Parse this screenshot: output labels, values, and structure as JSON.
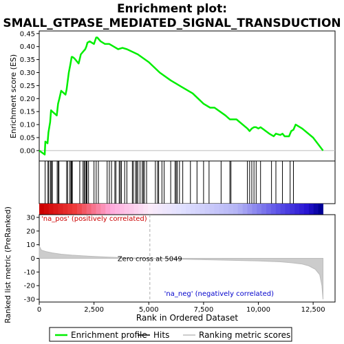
{
  "chart_data": {
    "type": "line",
    "title_line1": "Enrichment plot:",
    "title_line2": "SMALL_GTPASE_MEDIATED_SIGNAL_TRANSDUCTION",
    "xlabel": "Rank in Ordered Dataset",
    "top_ylabel": "Enrichment score (ES)",
    "bottom_ylabel_line1": "Ranked list metric (PreRanked)",
    "x_range": [
      0,
      13500
    ],
    "x_ticks": [
      0,
      2500,
      5000,
      7500,
      10000,
      12500
    ],
    "x_tick_labels": [
      "0",
      "2,500",
      "5,000",
      "7,500",
      "10,000",
      "12,500"
    ],
    "es_range": [
      -0.04,
      0.46
    ],
    "es_ticks": [
      0.0,
      0.05,
      0.1,
      0.15,
      0.2,
      0.25,
      0.3,
      0.35,
      0.4,
      0.45
    ],
    "es_tick_labels": [
      "0.00",
      "0.05",
      "0.10",
      "0.15",
      "0.20",
      "0.25",
      "0.30",
      "0.35",
      "0.40",
      "0.45"
    ],
    "metric_range": [
      -32,
      32
    ],
    "metric_ticks": [
      30,
      20,
      10,
      0,
      -10,
      -20,
      -30
    ],
    "metric_tick_labels": [
      "30",
      "20",
      "10",
      "0",
      "-10",
      "-20",
      "-30"
    ],
    "series": [
      {
        "name": "Enrichment profile",
        "color": "#00ee00",
        "x": [
          0,
          250,
          280,
          380,
          420,
          500,
          540,
          600,
          800,
          860,
          920,
          1000,
          1200,
          1250,
          1350,
          1420,
          1450,
          1480,
          1520,
          1600,
          1800,
          1900,
          2000,
          2100,
          2150,
          2200,
          2300,
          2400,
          2500,
          2600,
          2650,
          2800,
          3000,
          3200,
          3400,
          3600,
          3800,
          4000,
          4500,
          5000,
          5500,
          6000,
          6500,
          7000,
          7500,
          7800,
          8000,
          8500,
          8700,
          9000,
          9500,
          9600,
          9700,
          9800,
          9900,
          10000,
          10100,
          10500,
          10700,
          10800,
          11000,
          11100,
          11200,
          11400,
          11500,
          11600,
          11700,
          12000,
          12500,
          12950
        ],
        "values": [
          0.0,
          -0.015,
          0.035,
          0.028,
          0.07,
          0.11,
          0.155,
          0.15,
          0.135,
          0.18,
          0.2,
          0.23,
          0.215,
          0.235,
          0.3,
          0.33,
          0.345,
          0.36,
          0.36,
          0.355,
          0.335,
          0.37,
          0.38,
          0.39,
          0.4,
          0.415,
          0.42,
          0.415,
          0.41,
          0.435,
          0.435,
          0.42,
          0.41,
          0.41,
          0.4,
          0.39,
          0.395,
          0.39,
          0.37,
          0.34,
          0.3,
          0.27,
          0.245,
          0.22,
          0.18,
          0.165,
          0.165,
          0.135,
          0.12,
          0.12,
          0.085,
          0.075,
          0.085,
          0.09,
          0.09,
          0.085,
          0.09,
          0.065,
          0.055,
          0.065,
          0.06,
          0.065,
          0.055,
          0.055,
          0.075,
          0.08,
          0.1,
          0.085,
          0.05,
          0.0
        ]
      },
      {
        "name": "Ranking metric scores",
        "color": "#bbbbbb",
        "x": [
          0,
          100,
          300,
          600,
          1000,
          1500,
          2000,
          3000,
          4000,
          5049,
          6000,
          7000,
          8000,
          9000,
          10000,
          11000,
          11500,
          12000,
          12300,
          12600,
          12800,
          12900,
          12950
        ],
        "values": [
          9,
          6,
          5,
          4,
          3,
          2.3,
          1.8,
          1.0,
          0.4,
          0,
          -0.4,
          -0.8,
          -1.1,
          -1.5,
          -1.9,
          -2.5,
          -3.2,
          -4.2,
          -5.5,
          -8,
          -12,
          -20,
          -30
        ]
      }
    ],
    "hits": [
      270,
      400,
      440,
      520,
      560,
      600,
      820,
      870,
      900,
      1250,
      1300,
      1400,
      1450,
      1480,
      1510,
      1850,
      2000,
      2050,
      2100,
      2150,
      2180,
      2250,
      2500,
      2600,
      2700,
      3100,
      3200,
      3300,
      3450,
      3500,
      3650,
      3700,
      3750,
      3900,
      4000,
      4250,
      4300,
      4400,
      4450,
      4500,
      4600,
      4700,
      4750,
      4800,
      4900,
      5300,
      5400,
      5450,
      5600,
      5700,
      6000,
      6200,
      6250,
      6300,
      6400,
      6550,
      6900,
      7200,
      7500,
      7750,
      8300,
      8700,
      8750,
      9500,
      9600,
      9700,
      9800,
      9900,
      10100,
      10600,
      10800,
      11100,
      11450,
      11600
    ],
    "zero_cross_label": "Zero cross at 5049",
    "zero_cross_x": 5049,
    "pos_label": "'na_pos' (positively correlated)",
    "neg_label": "'na_neg' (negatively correlated)",
    "legend": [
      {
        "label": "Enrichment profile",
        "color": "#00ee00",
        "kind": "line"
      },
      {
        "label": "Hits",
        "color": "#000000",
        "kind": "line"
      },
      {
        "label": "Ranking metric scores",
        "color": "#bbbbbb",
        "kind": "line"
      }
    ],
    "colors": {
      "pos_ann": "#cc0000",
      "neg_ann": "#0000cc",
      "zero_cross_line": "#aaaaaa"
    }
  }
}
